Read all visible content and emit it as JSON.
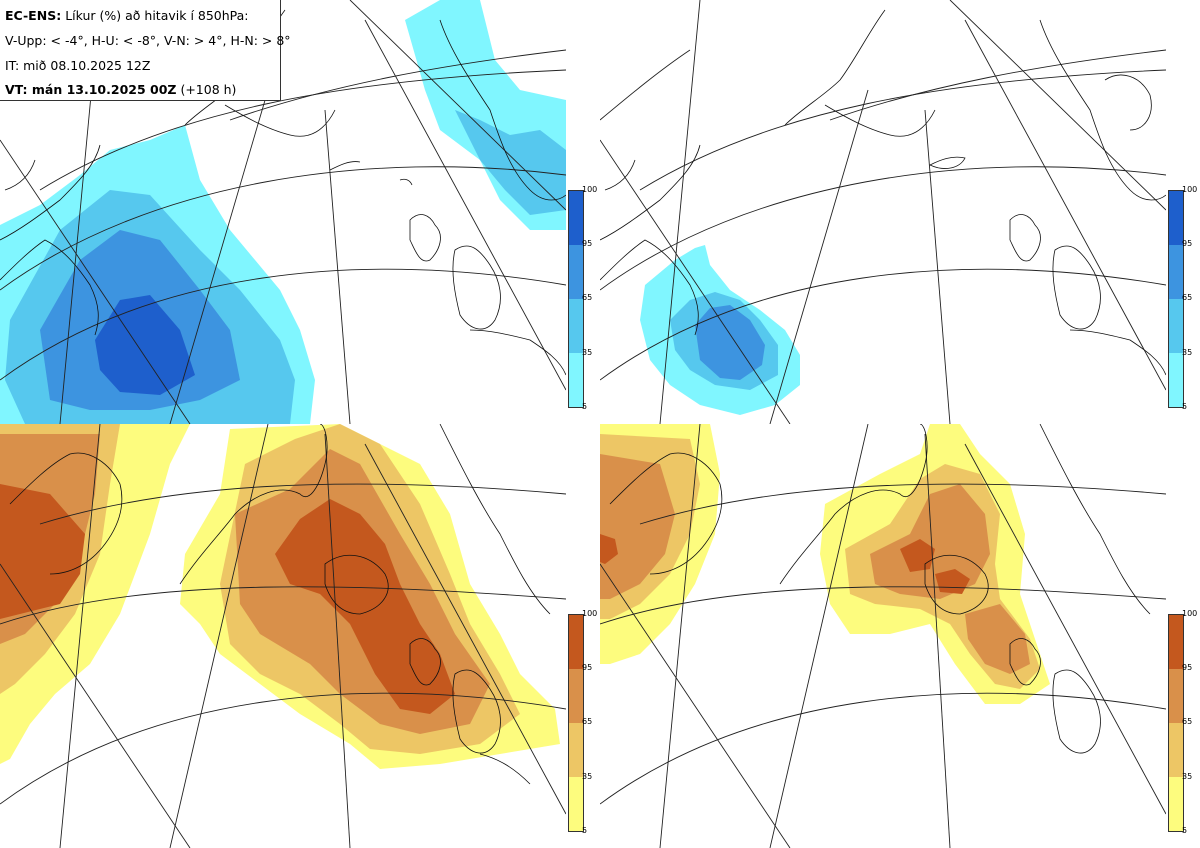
{
  "legend": {
    "model": "EC-ENS:",
    "title": "Líkur (%) að hitavik í 850hPa:",
    "thresholds": "V-Upp: < -4°, H-U: < -8°, V-N: > 4°, H-N: > 8°",
    "init_time": "IT: mið 08.10.2025 12Z",
    "valid_label": "VT: mán 13.10.2025 00Z",
    "lead": "(+108 h)"
  },
  "panels": [
    {
      "id": "V-Upp",
      "desc_threshold": "< -4°",
      "scheme": "cold"
    },
    {
      "id": "H-U",
      "desc_threshold": "< -8°",
      "scheme": "cold"
    },
    {
      "id": "V-N",
      "desc_threshold": "> 4°",
      "scheme": "warm"
    },
    {
      "id": "H-N",
      "desc_threshold": "> 8°",
      "scheme": "warm"
    }
  ],
  "colorbar_ticks": [
    "100",
    "95",
    "65",
    "35",
    "5"
  ],
  "colors": {
    "cold": [
      "#80f6ff",
      "#56c8ee",
      "#3d94e0",
      "#1e5fcc"
    ],
    "warm": [
      "#fdfc7e",
      "#edc665",
      "#d9904a",
      "#c4581e"
    ],
    "coast": "#111111",
    "grid": "#222222"
  }
}
